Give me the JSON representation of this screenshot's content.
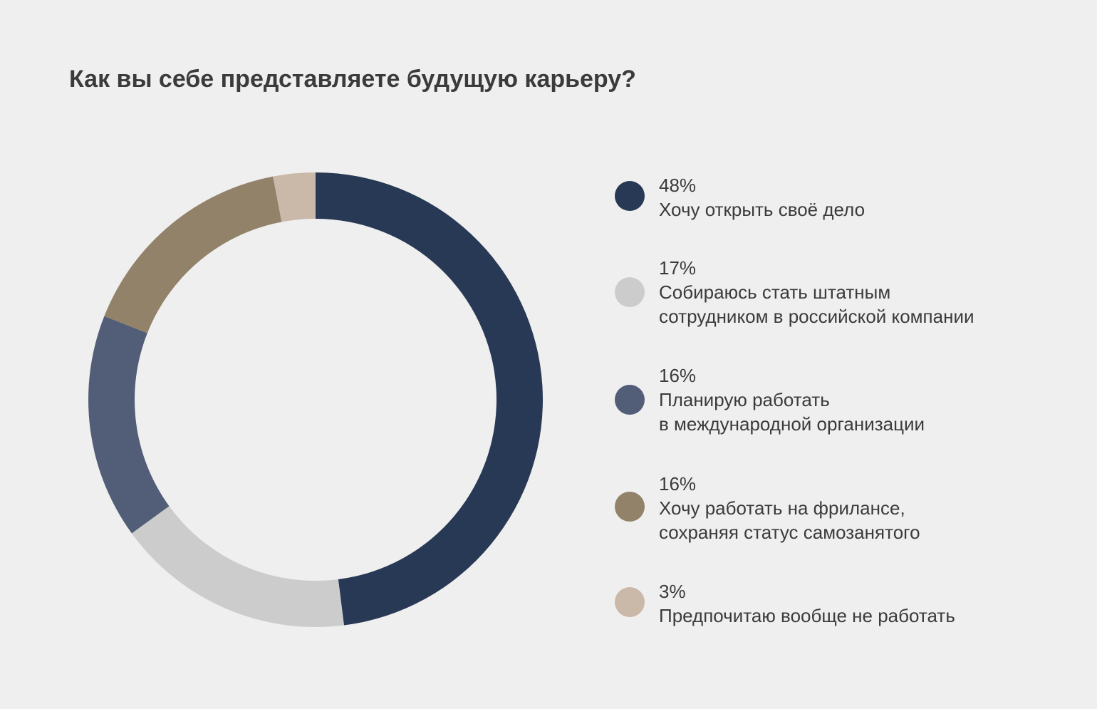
{
  "chart_data": {
    "type": "pie",
    "title": "Как вы себе представляете будущую карьеру?",
    "legend_position": "right",
    "slices": [
      {
        "value": 48,
        "label": "48%",
        "lines": [
          "Хочу открыть своё дело"
        ],
        "color": "#283955"
      },
      {
        "value": 17,
        "label": "17%",
        "lines": [
          "Собираюсь стать штатным",
          "сотрудником в российской компании"
        ],
        "color": "#cccccc"
      },
      {
        "value": 16,
        "label": "16%",
        "lines": [
          "Планирую работать",
          "в международной организации"
        ],
        "color": "#525d77"
      },
      {
        "value": 16,
        "label": "16%",
        "lines": [
          "Хочу работать на фрилансе,",
          "сохраняя статус самозанятого"
        ],
        "color": "#92826a"
      },
      {
        "value": 3,
        "label": "3%",
        "lines": [
          "Предпочитаю вообще не работать"
        ],
        "color": "#cab8a9"
      }
    ]
  }
}
